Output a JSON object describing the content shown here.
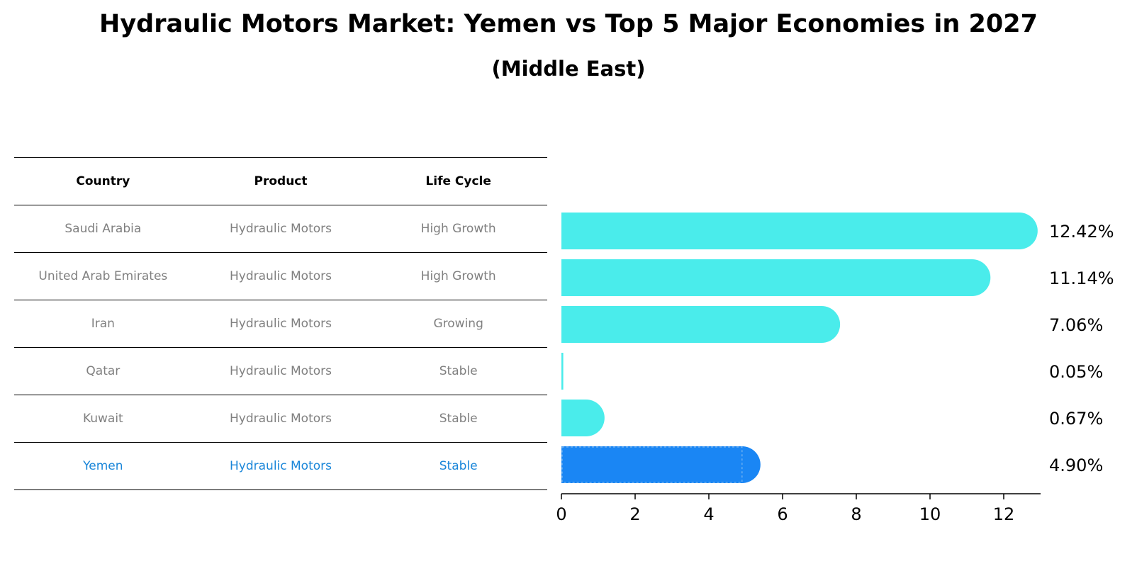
{
  "title": "Hydraulic Motors Market: Yemen vs Top 5 Major Economies in 2027",
  "subtitle": "(Middle East)",
  "table": {
    "headers": [
      "Country",
      "Product",
      "Life Cycle"
    ],
    "rows": [
      {
        "country": "Saudi Arabia",
        "product": "Hydraulic Motors",
        "life_cycle": "High Growth"
      },
      {
        "country": "United Arab Emirates",
        "product": "Hydraulic Motors",
        "life_cycle": "High Growth"
      },
      {
        "country": "Iran",
        "product": "Hydraulic Motors",
        "life_cycle": "Growing"
      },
      {
        "country": "Qatar",
        "product": "Hydraulic Motors",
        "life_cycle": "Stable"
      },
      {
        "country": "Kuwait",
        "product": "Hydraulic Motors",
        "life_cycle": "Stable"
      },
      {
        "country": "Yemen",
        "product": "Hydraulic Motors",
        "life_cycle": "Stable"
      }
    ]
  },
  "colors": {
    "bar": "#4aeceb",
    "highlight": "#1a86f4",
    "highlight_text": "#1a86d9"
  },
  "chart_data": {
    "type": "bar",
    "orientation": "horizontal",
    "categories": [
      "Saudi Arabia",
      "United Arab Emirates",
      "Iran",
      "Qatar",
      "Kuwait",
      "Yemen"
    ],
    "values": [
      12.42,
      11.14,
      7.06,
      0.05,
      0.67,
      4.9
    ],
    "value_labels": [
      "12.42%",
      "11.14%",
      "7.06%",
      "0.05%",
      "0.67%",
      "4.90%"
    ],
    "highlight": "Yemen",
    "xlim": [
      0,
      13
    ],
    "xticks": [
      0,
      2,
      4,
      6,
      8,
      10,
      12
    ],
    "grid": false
  }
}
